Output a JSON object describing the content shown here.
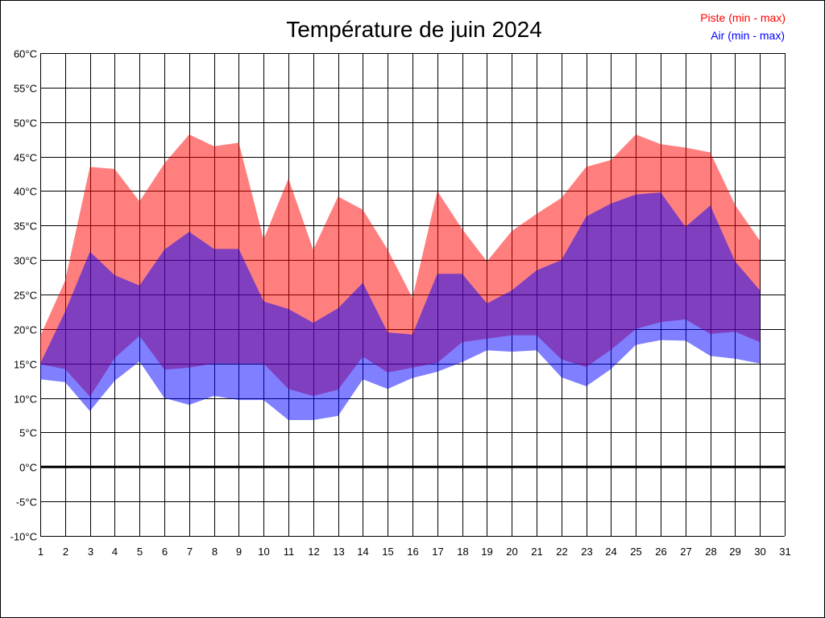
{
  "chart_data": {
    "type": "area",
    "title": "Température de juin 2024",
    "ylim": [
      -10,
      60
    ],
    "xlim": [
      1,
      31
    ],
    "y_ticks": [
      "-10°C",
      "-5°C",
      "0°C",
      "5°C",
      "10°C",
      "15°C",
      "20°C",
      "25°C",
      "30°C",
      "35°C",
      "40°C",
      "45°C",
      "50°C",
      "55°C",
      "60°C"
    ],
    "x_ticks": [
      "1",
      "2",
      "3",
      "4",
      "5",
      "6",
      "7",
      "8",
      "9",
      "10",
      "11",
      "12",
      "13",
      "14",
      "15",
      "16",
      "17",
      "18",
      "19",
      "20",
      "21",
      "22",
      "23",
      "24",
      "25",
      "26",
      "27",
      "28",
      "29",
      "30",
      "31"
    ],
    "grid": true,
    "legend_placement": "top-right",
    "x": [
      1,
      2,
      3,
      4,
      5,
      6,
      7,
      8,
      9,
      10,
      11,
      12,
      13,
      14,
      15,
      16,
      17,
      18,
      19,
      20,
      21,
      22,
      23,
      24,
      25,
      26,
      27,
      28,
      29,
      30
    ],
    "series": [
      {
        "name": "Piste (min - max)",
        "color": "#ff0000",
        "fill": "#ff8080",
        "min": [
          14.9,
          14.2,
          10.2,
          15.8,
          19.0,
          14.1,
          14.4,
          15.0,
          15.0,
          15.0,
          11.3,
          10.3,
          11.2,
          16.0,
          13.7,
          14.4,
          15.1,
          18.1,
          18.6,
          19.1,
          19.1,
          15.6,
          14.5,
          17.0,
          20.0,
          21.0,
          21.4,
          19.3,
          19.6,
          18.1
        ],
        "max": [
          19.0,
          27.0,
          43.5,
          43.2,
          38.5,
          44.0,
          48.2,
          46.5,
          47.0,
          33.0,
          41.8,
          31.5,
          39.2,
          37.3,
          31.5,
          24.5,
          40.0,
          34.5,
          29.8,
          34.2,
          36.7,
          39.0,
          43.5,
          44.5,
          48.2,
          46.8,
          46.3,
          45.6,
          38.0,
          32.8
        ]
      },
      {
        "name": "Air (min - max)",
        "color": "#0000ff",
        "fill": "#8080ff",
        "min": [
          12.7,
          12.3,
          8.1,
          12.5,
          15.3,
          10.0,
          9.0,
          10.3,
          9.7,
          9.7,
          6.8,
          6.8,
          7.4,
          12.7,
          11.3,
          12.9,
          13.8,
          15.2,
          16.9,
          16.7,
          16.9,
          13.0,
          11.7,
          14.2,
          17.7,
          18.4,
          18.3,
          16.1,
          15.7,
          15.0
        ],
        "max": [
          15.0,
          22.5,
          31.2,
          27.8,
          26.3,
          31.5,
          34.1,
          31.6,
          31.6,
          24.0,
          22.9,
          20.9,
          23.0,
          26.7,
          19.5,
          19.2,
          28.0,
          28.0,
          23.7,
          25.6,
          28.5,
          30.0,
          36.3,
          38.2,
          39.5,
          39.8,
          34.8,
          37.9,
          29.8,
          25.6
        ]
      }
    ]
  }
}
